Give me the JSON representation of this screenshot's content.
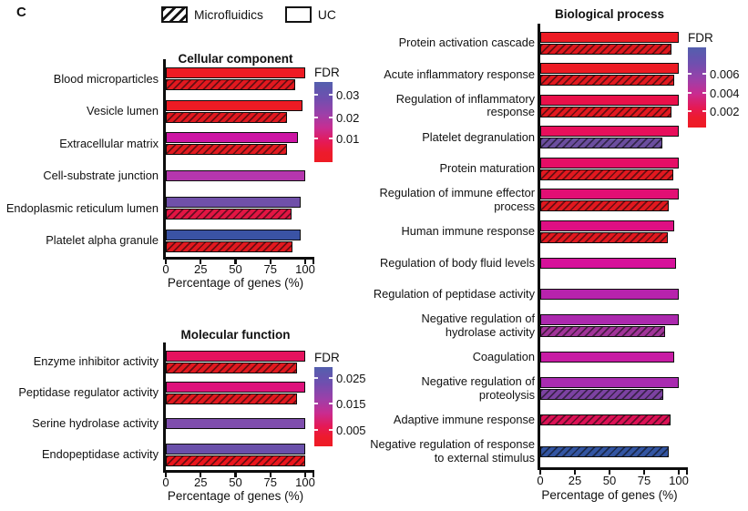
{
  "panel_label": "C",
  "legend": {
    "items": [
      {
        "label": "Microfluidics",
        "pattern": "hatched"
      },
      {
        "label": "UC",
        "pattern": "plain"
      }
    ]
  },
  "chart_data": [
    {
      "id": "cellular-component",
      "type": "bar",
      "orientation": "horizontal",
      "title": "Cellular component",
      "xlabel": "Percentage of genes (%)",
      "xlim": [
        0,
        100
      ],
      "xticks": [
        0,
        25,
        50,
        75,
        100
      ],
      "groups": [
        "UC",
        "Microfluidics"
      ],
      "colorbar": {
        "label": "FDR",
        "ticks": [
          "0.03",
          "0.02",
          "0.01"
        ]
      },
      "rows": [
        {
          "category": "Blood microparticles",
          "bars": [
            {
              "group": "UC",
              "value": 100,
              "color": "#EE1B24"
            },
            {
              "group": "Microfluidics",
              "value": 93,
              "color": "#E2181F"
            }
          ]
        },
        {
          "category": "Vesicle lumen",
          "bars": [
            {
              "group": "UC",
              "value": 98,
              "color": "#ED1B24"
            },
            {
              "group": "Microfluidics",
              "value": 87,
              "color": "#E2181F"
            }
          ]
        },
        {
          "category": "Extracellular matrix",
          "bars": [
            {
              "group": "UC",
              "value": 95,
              "color": "#CD15A4"
            },
            {
              "group": "Microfluidics",
              "value": 87,
              "color": "#E21A20"
            }
          ]
        },
        {
          "category": "Cell-substrate junction",
          "bars": [
            {
              "group": "UC",
              "value": 100,
              "color": "#B536AE"
            }
          ]
        },
        {
          "category": "Endoplasmic reticulum lumen",
          "bars": [
            {
              "group": "UC",
              "value": 97,
              "color": "#7050A9"
            },
            {
              "group": "Microfluidics",
              "value": 90,
              "color": "#E31543"
            }
          ]
        },
        {
          "category": "Platelet alpha granule",
          "bars": [
            {
              "group": "UC",
              "value": 97,
              "color": "#3A53A5"
            },
            {
              "group": "Microfluidics",
              "value": 91,
              "color": "#E2181F"
            }
          ]
        }
      ]
    },
    {
      "id": "molecular-function",
      "type": "bar",
      "orientation": "horizontal",
      "title": "Molecular function",
      "xlabel": "Percentage of genes (%)",
      "xlim": [
        0,
        100
      ],
      "xticks": [
        0,
        25,
        50,
        75,
        100
      ],
      "groups": [
        "UC",
        "Microfluidics"
      ],
      "colorbar": {
        "label": "FDR",
        "ticks": [
          "0.025",
          "0.015",
          "0.005"
        ]
      },
      "rows": [
        {
          "category": "Enzyme inhibitor activity",
          "bars": [
            {
              "group": "UC",
              "value": 100,
              "color": "#E5135E"
            },
            {
              "group": "Microfluidics",
              "value": 94,
              "color": "#E2181F"
            }
          ]
        },
        {
          "category": "Peptidase regulator activity",
          "bars": [
            {
              "group": "UC",
              "value": 100,
              "color": "#DE127B"
            },
            {
              "group": "Microfluidics",
              "value": 94,
              "color": "#E2181F"
            }
          ]
        },
        {
          "category": "Serine hydrolase activity",
          "bars": [
            {
              "group": "UC",
              "value": 100,
              "color": "#7F4EAD"
            }
          ]
        },
        {
          "category": "Endopeptidase activity",
          "bars": [
            {
              "group": "UC",
              "value": 100,
              "color": "#6A50AA"
            },
            {
              "group": "Microfluidics",
              "value": 100,
              "color": "#EB151C"
            }
          ]
        }
      ]
    },
    {
      "id": "biological-process",
      "type": "bar",
      "orientation": "horizontal",
      "title": "Biological process",
      "xlabel": "Percentage of genes (%)",
      "xlim": [
        0,
        100
      ],
      "xticks": [
        0,
        25,
        50,
        75,
        100
      ],
      "groups": [
        "UC",
        "Microfluidics"
      ],
      "colorbar": {
        "label": "FDR",
        "ticks": [
          "0.006",
          "0.004",
          "0.002"
        ]
      },
      "rows": [
        {
          "category": "Protein activation cascade",
          "bars": [
            {
              "group": "UC",
              "value": 100,
              "color": "#ED1B24"
            },
            {
              "group": "Microfluidics",
              "value": 95,
              "color": "#DF171E"
            }
          ]
        },
        {
          "category": "Acute inflammatory response",
          "bars": [
            {
              "group": "UC",
              "value": 100,
              "color": "#ED1B24"
            },
            {
              "group": "Microfluidics",
              "value": 97,
              "color": "#E2181F"
            }
          ]
        },
        {
          "category": "Regulation of inflammatory response",
          "bars": [
            {
              "group": "UC",
              "value": 100,
              "color": "#E9104A"
            },
            {
              "group": "Microfluidics",
              "value": 95,
              "color": "#E2181F"
            }
          ]
        },
        {
          "category": "Platelet degranulation",
          "bars": [
            {
              "group": "UC",
              "value": 100,
              "color": "#E80F5B"
            },
            {
              "group": "Microfluidics",
              "value": 88,
              "color": "#6B4E9F"
            }
          ]
        },
        {
          "category": "Protein maturation",
          "bars": [
            {
              "group": "UC",
              "value": 100,
              "color": "#E50E66"
            },
            {
              "group": "Microfluidics",
              "value": 96,
              "color": "#E2181F"
            }
          ]
        },
        {
          "category": "Regulation of immune effector process",
          "bars": [
            {
              "group": "UC",
              "value": 100,
              "color": "#E20F74"
            },
            {
              "group": "Microfluidics",
              "value": 93,
              "color": "#E2181F"
            }
          ]
        },
        {
          "category": "Human immune response",
          "bars": [
            {
              "group": "UC",
              "value": 97,
              "color": "#DE0F83"
            },
            {
              "group": "Microfluidics",
              "value": 92,
              "color": "#E2181F"
            }
          ]
        },
        {
          "category": "Regulation of body fluid levels",
          "bars": [
            {
              "group": "UC",
              "value": 98,
              "color": "#D6119A"
            }
          ]
        },
        {
          "category": "Regulation of peptidase activity",
          "bars": [
            {
              "group": "UC",
              "value": 100,
              "color": "#B723AC"
            }
          ]
        },
        {
          "category": "Negative regulation of hydrolase activity",
          "bars": [
            {
              "group": "UC",
              "value": 100,
              "color": "#AC29AE"
            },
            {
              "group": "Microfluidics",
              "value": 90,
              "color": "#A13499"
            }
          ]
        },
        {
          "category": "Coagulation",
          "bars": [
            {
              "group": "UC",
              "value": 97,
              "color": "#C81CA4"
            }
          ]
        },
        {
          "category": "Negative regulation of proteolysis",
          "bars": [
            {
              "group": "UC",
              "value": 100,
              "color": "#A92BB0"
            },
            {
              "group": "Microfluidics",
              "value": 89,
              "color": "#7C42A2"
            }
          ]
        },
        {
          "category": "Adaptive immune response",
          "bars": [
            {
              "group": "Microfluidics",
              "value": 94,
              "color": "#DC1155"
            }
          ]
        },
        {
          "category": "Negative regulation of response to external stimulus",
          "bars": [
            {
              "group": "Microfluidics",
              "value": 93,
              "color": "#3355A2"
            }
          ]
        }
      ]
    }
  ]
}
